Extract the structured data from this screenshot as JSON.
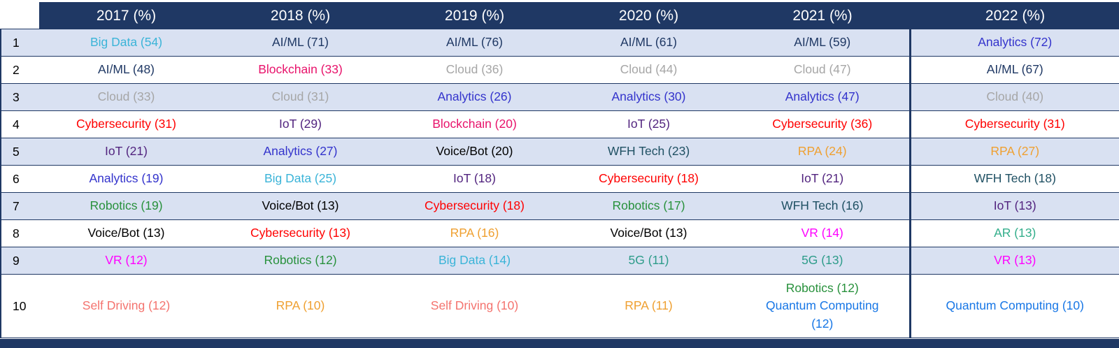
{
  "palette": {
    "header_bg": "#1F3864",
    "header_text": "#FFFFFF",
    "row_alt_bg": "#D9E1F2",
    "row_bg": "#FFFFFF",
    "grid_border": "#1F3864",
    "bottom_bar": "#1F3864",
    "rank_text": "#000000"
  },
  "tech_colors": {
    "big_data": "#3BB4D8",
    "ai_ml": "#1F3864",
    "analytics": "#3333CC",
    "cloud": "#A6A6A6",
    "cybersecurity": "#FF0000",
    "iot": "#52247F",
    "blockchain": "#E8136B",
    "voice_bot": "#000000",
    "wfh_tech": "#1F5063",
    "rpa": "#EFA031",
    "robotics": "#28913C",
    "vr": "#FF00FF",
    "five_g": "#2E9C8A",
    "ar": "#33AE8B",
    "self_driving": "#F4736E",
    "quantum_computing": "#1877E6"
  },
  "chart_data": {
    "type": "table",
    "columns": [
      "2017 (%)",
      "2018 (%)",
      "2019 (%)",
      "2020 (%)",
      "2021 (%)",
      "2022 (%)"
    ],
    "rows": [
      {
        "rank": "1",
        "cells": [
          [
            {
              "text": "Big Data (54)",
              "color": "big_data"
            }
          ],
          [
            {
              "text": "AI/ML (71)",
              "color": "ai_ml"
            }
          ],
          [
            {
              "text": "AI/ML (76)",
              "color": "ai_ml"
            }
          ],
          [
            {
              "text": "AI/ML (61)",
              "color": "ai_ml"
            }
          ],
          [
            {
              "text": "AI/ML (59)",
              "color": "ai_ml"
            }
          ],
          [
            {
              "text": "Analytics (72)",
              "color": "analytics"
            }
          ]
        ]
      },
      {
        "rank": "2",
        "cells": [
          [
            {
              "text": "AI/ML (48)",
              "color": "ai_ml"
            }
          ],
          [
            {
              "text": "Blockchain (33)",
              "color": "blockchain"
            }
          ],
          [
            {
              "text": "Cloud (36)",
              "color": "cloud"
            }
          ],
          [
            {
              "text": "Cloud (44)",
              "color": "cloud"
            }
          ],
          [
            {
              "text": "Cloud (47)",
              "color": "cloud"
            }
          ],
          [
            {
              "text": "AI/ML (67)",
              "color": "ai_ml"
            }
          ]
        ]
      },
      {
        "rank": "3",
        "cells": [
          [
            {
              "text": "Cloud (33)",
              "color": "cloud"
            }
          ],
          [
            {
              "text": "Cloud (31)",
              "color": "cloud"
            }
          ],
          [
            {
              "text": "Analytics (26)",
              "color": "analytics"
            }
          ],
          [
            {
              "text": "Analytics (30)",
              "color": "analytics"
            }
          ],
          [
            {
              "text": "Analytics (47)",
              "color": "analytics"
            }
          ],
          [
            {
              "text": "Cloud (40)",
              "color": "cloud"
            }
          ]
        ]
      },
      {
        "rank": "4",
        "cells": [
          [
            {
              "text": "Cybersecurity (31)",
              "color": "cybersecurity"
            }
          ],
          [
            {
              "text": "IoT (29)",
              "color": "iot"
            }
          ],
          [
            {
              "text": "Blockchain (20)",
              "color": "blockchain"
            }
          ],
          [
            {
              "text": "IoT (25)",
              "color": "iot"
            }
          ],
          [
            {
              "text": "Cybersecurity (36)",
              "color": "cybersecurity"
            }
          ],
          [
            {
              "text": "Cybersecurity (31)",
              "color": "cybersecurity"
            }
          ]
        ]
      },
      {
        "rank": "5",
        "cells": [
          [
            {
              "text": "IoT (21)",
              "color": "iot"
            }
          ],
          [
            {
              "text": "Analytics (27)",
              "color": "analytics"
            }
          ],
          [
            {
              "text": "Voice/Bot (20)",
              "color": "voice_bot"
            }
          ],
          [
            {
              "text": "WFH Tech (23)",
              "color": "wfh_tech"
            }
          ],
          [
            {
              "text": "RPA (24)",
              "color": "rpa"
            }
          ],
          [
            {
              "text": "RPA (27)",
              "color": "rpa"
            }
          ]
        ]
      },
      {
        "rank": "6",
        "cells": [
          [
            {
              "text": "Analytics (19)",
              "color": "analytics"
            }
          ],
          [
            {
              "text": "Big Data (25)",
              "color": "big_data"
            }
          ],
          [
            {
              "text": "IoT (18)",
              "color": "iot"
            }
          ],
          [
            {
              "text": "Cybersecurity (18)",
              "color": "cybersecurity"
            }
          ],
          [
            {
              "text": "IoT (21)",
              "color": "iot"
            }
          ],
          [
            {
              "text": "WFH Tech (18)",
              "color": "wfh_tech"
            }
          ]
        ]
      },
      {
        "rank": "7",
        "cells": [
          [
            {
              "text": "Robotics (19)",
              "color": "robotics"
            }
          ],
          [
            {
              "text": "Voice/Bot (13)",
              "color": "voice_bot"
            }
          ],
          [
            {
              "text": "Cybersecurity (18)",
              "color": "cybersecurity"
            }
          ],
          [
            {
              "text": "Robotics (17)",
              "color": "robotics"
            }
          ],
          [
            {
              "text": "WFH Tech (16)",
              "color": "wfh_tech"
            }
          ],
          [
            {
              "text": "IoT (13)",
              "color": "iot"
            }
          ]
        ]
      },
      {
        "rank": "8",
        "cells": [
          [
            {
              "text": "Voice/Bot (13)",
              "color": "voice_bot"
            }
          ],
          [
            {
              "text": "Cybersecurity (13)",
              "color": "cybersecurity"
            }
          ],
          [
            {
              "text": "RPA (16)",
              "color": "rpa"
            }
          ],
          [
            {
              "text": "Voice/Bot (13)",
              "color": "voice_bot"
            }
          ],
          [
            {
              "text": "VR (14)",
              "color": "vr"
            }
          ],
          [
            {
              "text": "AR (13)",
              "color": "ar"
            }
          ]
        ]
      },
      {
        "rank": "9",
        "cells": [
          [
            {
              "text": "VR (12)",
              "color": "vr"
            }
          ],
          [
            {
              "text": "Robotics (12)",
              "color": "robotics"
            }
          ],
          [
            {
              "text": "Big Data (14)",
              "color": "big_data"
            }
          ],
          [
            {
              "text": "5G (11)",
              "color": "five_g"
            }
          ],
          [
            {
              "text": "5G (13)",
              "color": "five_g"
            }
          ],
          [
            {
              "text": "VR (13)",
              "color": "vr"
            }
          ]
        ]
      },
      {
        "rank": "10",
        "cells": [
          [
            {
              "text": "Self Driving (12)",
              "color": "self_driving"
            }
          ],
          [
            {
              "text": "RPA (10)",
              "color": "rpa"
            }
          ],
          [
            {
              "text": "Self Driving (10)",
              "color": "self_driving"
            }
          ],
          [
            {
              "text": "RPA (11)",
              "color": "rpa"
            }
          ],
          [
            {
              "text": "Robotics (12)",
              "color": "robotics"
            },
            {
              "text": "Quantum Computing (12)",
              "color": "quantum_computing"
            }
          ],
          [
            {
              "text": "Quantum Computing (10)",
              "color": "quantum_computing"
            }
          ]
        ]
      }
    ]
  }
}
